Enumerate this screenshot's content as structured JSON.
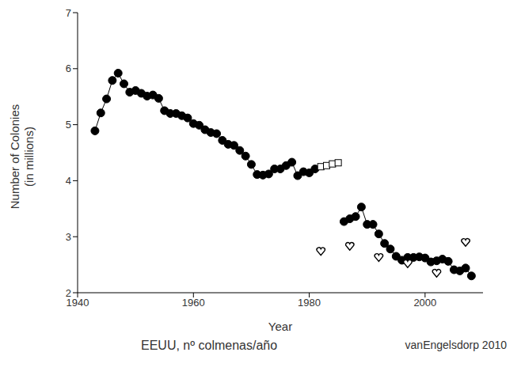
{
  "chart_data": {
    "type": "line",
    "caption": "EEUU, nº colmenas/año",
    "source": "vanEngelsdorp 2010",
    "x_label": "Year",
    "y_label": [
      "Number of Colonies",
      "(in millions)"
    ],
    "x": [
      1943,
      1944,
      1945,
      1946,
      1947,
      1948,
      1949,
      1950,
      1951,
      1952,
      1953,
      1954,
      1955,
      1956,
      1957,
      1958,
      1959,
      1960,
      1961,
      1962,
      1963,
      1964,
      1965,
      1966,
      1967,
      1968,
      1969,
      1970,
      1971,
      1972,
      1973,
      1974,
      1975,
      1976,
      1977,
      1978,
      1979,
      1980,
      1981,
      1982,
      1983,
      1984,
      1985,
      1986,
      1987,
      1988,
      1989,
      1990,
      1991,
      1992,
      1993,
      1994,
      1995,
      1996,
      1997,
      1998,
      1999,
      2000,
      2001,
      2002,
      2003,
      2004,
      2005,
      2006,
      2007,
      2008
    ],
    "series": [
      {
        "type": "line",
        "marker": "circle",
        "color": "#000000",
        "values": [
          4.89,
          5.21,
          5.46,
          5.79,
          5.92,
          5.73,
          5.58,
          5.61,
          5.56,
          5.51,
          5.53,
          5.47,
          5.25,
          5.2,
          5.2,
          5.16,
          5.12,
          5.02,
          4.99,
          4.91,
          4.86,
          4.84,
          4.72,
          4.65,
          4.63,
          4.54,
          4.44,
          4.29,
          4.11,
          4.1,
          4.12,
          4.21,
          4.21,
          4.27,
          4.33,
          4.09,
          4.16,
          4.14,
          4.21,
          null,
          null,
          null,
          null,
          3.27,
          3.32,
          3.36,
          3.53,
          3.22,
          3.22,
          3.05,
          2.88,
          2.78,
          2.65,
          2.58,
          2.63,
          2.63,
          2.64,
          2.62,
          2.55,
          2.57,
          2.6,
          2.56,
          2.41,
          2.39,
          2.44,
          2.3
        ]
      },
      {
        "type": "scatter",
        "marker": "square-open",
        "color": "#000000",
        "values": [
          null,
          null,
          null,
          null,
          null,
          null,
          null,
          null,
          null,
          null,
          null,
          null,
          null,
          null,
          null,
          null,
          null,
          null,
          null,
          null,
          null,
          null,
          null,
          null,
          null,
          null,
          null,
          null,
          null,
          null,
          null,
          null,
          null,
          null,
          null,
          null,
          null,
          null,
          null,
          4.25,
          4.27,
          4.3,
          4.32,
          null,
          null,
          null,
          null,
          null,
          null,
          null,
          null,
          null,
          null,
          null,
          null,
          null,
          null,
          null,
          null,
          null,
          null,
          null,
          null,
          null,
          null,
          null
        ]
      },
      {
        "type": "scatter",
        "marker": "heart-open",
        "color": "#000000",
        "values": [
          null,
          null,
          null,
          null,
          null,
          null,
          null,
          null,
          null,
          null,
          null,
          null,
          null,
          null,
          null,
          null,
          null,
          null,
          null,
          null,
          null,
          null,
          null,
          null,
          null,
          null,
          null,
          null,
          null,
          null,
          null,
          null,
          null,
          null,
          null,
          null,
          null,
          null,
          null,
          2.74,
          null,
          null,
          null,
          null,
          2.83,
          null,
          null,
          null,
          null,
          2.63,
          null,
          null,
          null,
          null,
          2.52,
          null,
          null,
          null,
          null,
          2.35,
          null,
          null,
          null,
          null,
          2.9,
          null
        ]
      }
    ],
    "xlim": [
      1940,
      2010
    ],
    "xticks": [
      1940,
      1960,
      1980,
      2000
    ],
    "ylim": [
      2,
      7
    ],
    "yticks": [
      2,
      3,
      4,
      5,
      6,
      7
    ],
    "grid": false
  }
}
